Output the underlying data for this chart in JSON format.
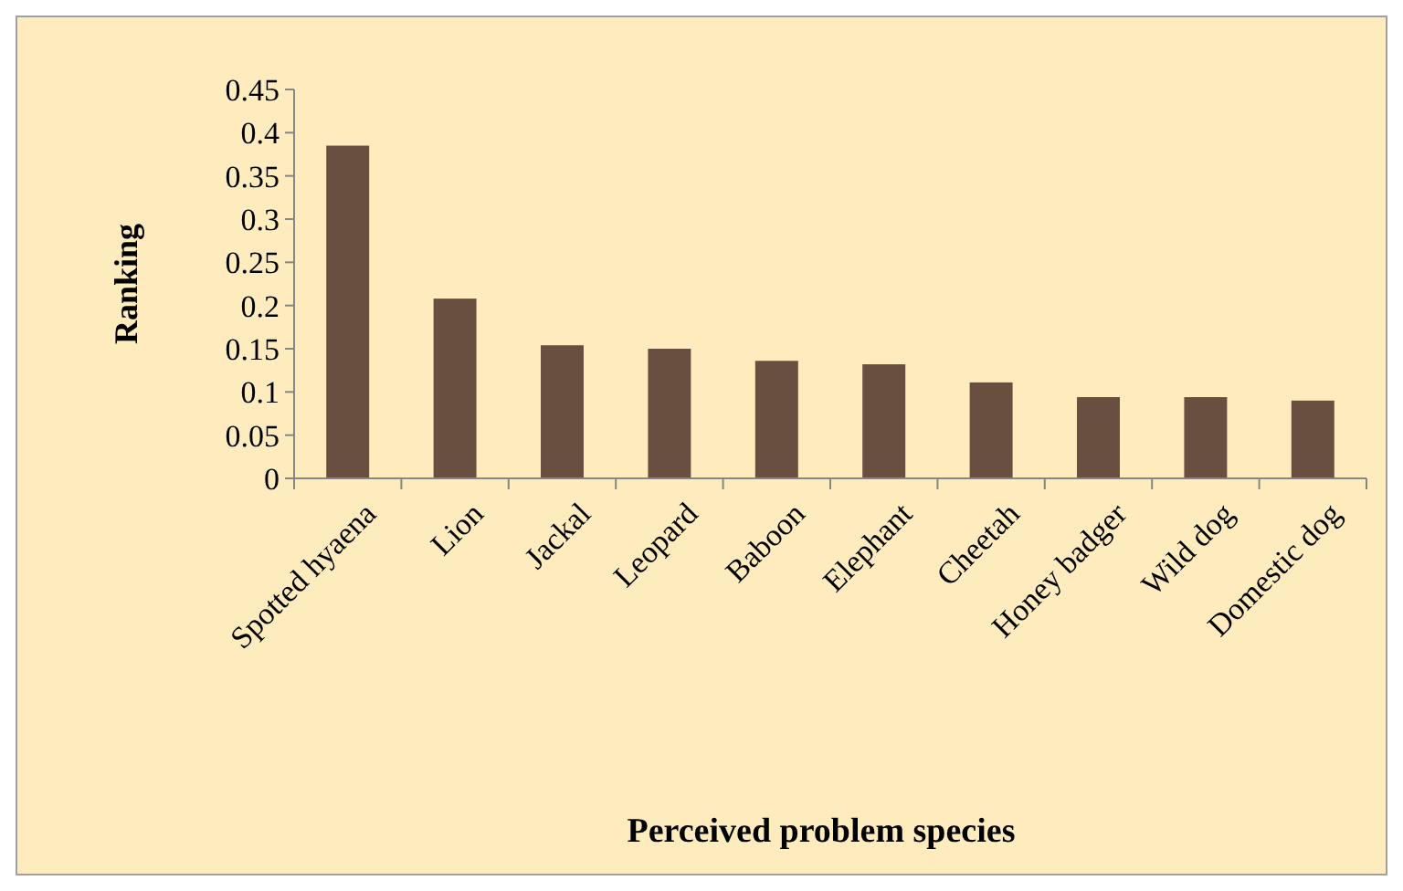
{
  "chart_data": {
    "type": "bar",
    "xlabel": "Perceived problem species",
    "ylabel": "Ranking",
    "categories": [
      "Spotted hyaena",
      "Lion",
      "Jackal",
      "Leopard",
      "Baboon",
      "Elephant",
      "Cheetah",
      "Honey badger",
      "Wild dog",
      "Domestic dog"
    ],
    "values": [
      0.385,
      0.208,
      0.154,
      0.15,
      0.136,
      0.132,
      0.111,
      0.094,
      0.094,
      0.09
    ],
    "color": "#684f40",
    "ylim": [
      0,
      0.45
    ],
    "yticks": [
      {
        "value": 0,
        "label": "0"
      },
      {
        "value": 0.05,
        "label": "0.05"
      },
      {
        "value": 0.1,
        "label": "0.1"
      },
      {
        "value": 0.15,
        "label": "0.15"
      },
      {
        "value": 0.2,
        "label": "0.2"
      },
      {
        "value": 0.25,
        "label": "0.25"
      },
      {
        "value": 0.3,
        "label": "0.3"
      },
      {
        "value": 0.35,
        "label": "0.35"
      },
      {
        "value": 0.4,
        "label": "0.4"
      },
      {
        "value": 0.45,
        "label": "0.45"
      }
    ],
    "grid": false
  }
}
